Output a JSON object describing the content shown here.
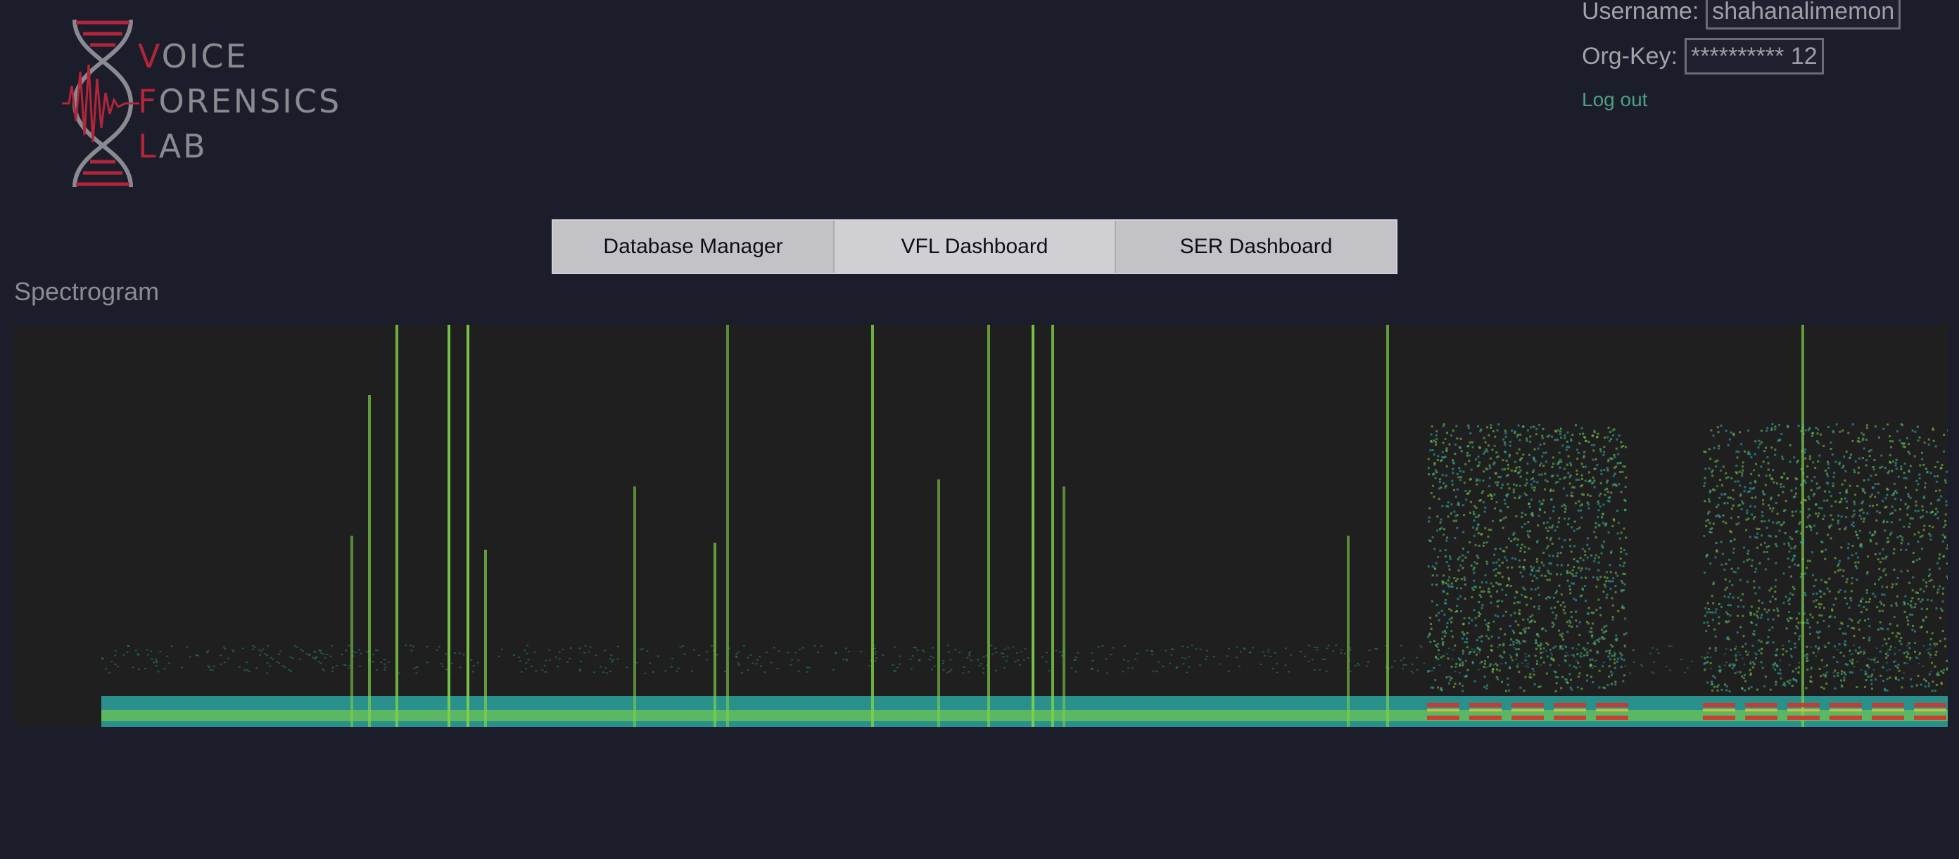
{
  "brand": {
    "line1": {
      "cap": "V",
      "rest": "OICE"
    },
    "line2": {
      "cap": "F",
      "rest": "ORENSICS"
    },
    "line3": {
      "cap": "L",
      "rest": "AB"
    },
    "accent_color": "#b3253a"
  },
  "user": {
    "username_label": "Username:",
    "username_value": "shahanalimemon",
    "orgkey_label": "Org-Key:",
    "orgkey_value": "********** 12",
    "logout_label": "Log out"
  },
  "tabs": [
    {
      "label": "Database Manager",
      "active": false
    },
    {
      "label": "VFL Dashboard",
      "active": true
    },
    {
      "label": "SER Dashboard",
      "active": false
    }
  ],
  "section_title": "Spectrogram",
  "colors": {
    "background": "#1b1d2a",
    "spectrogram_bg": "#1f1f1f",
    "spectro_low": "#2fb7b0",
    "spectro_mid": "#7fd24a",
    "spectro_high": "#d8322a",
    "link": "#4f9e83"
  },
  "icons": {
    "logo": "dna-waveform-icon"
  }
}
